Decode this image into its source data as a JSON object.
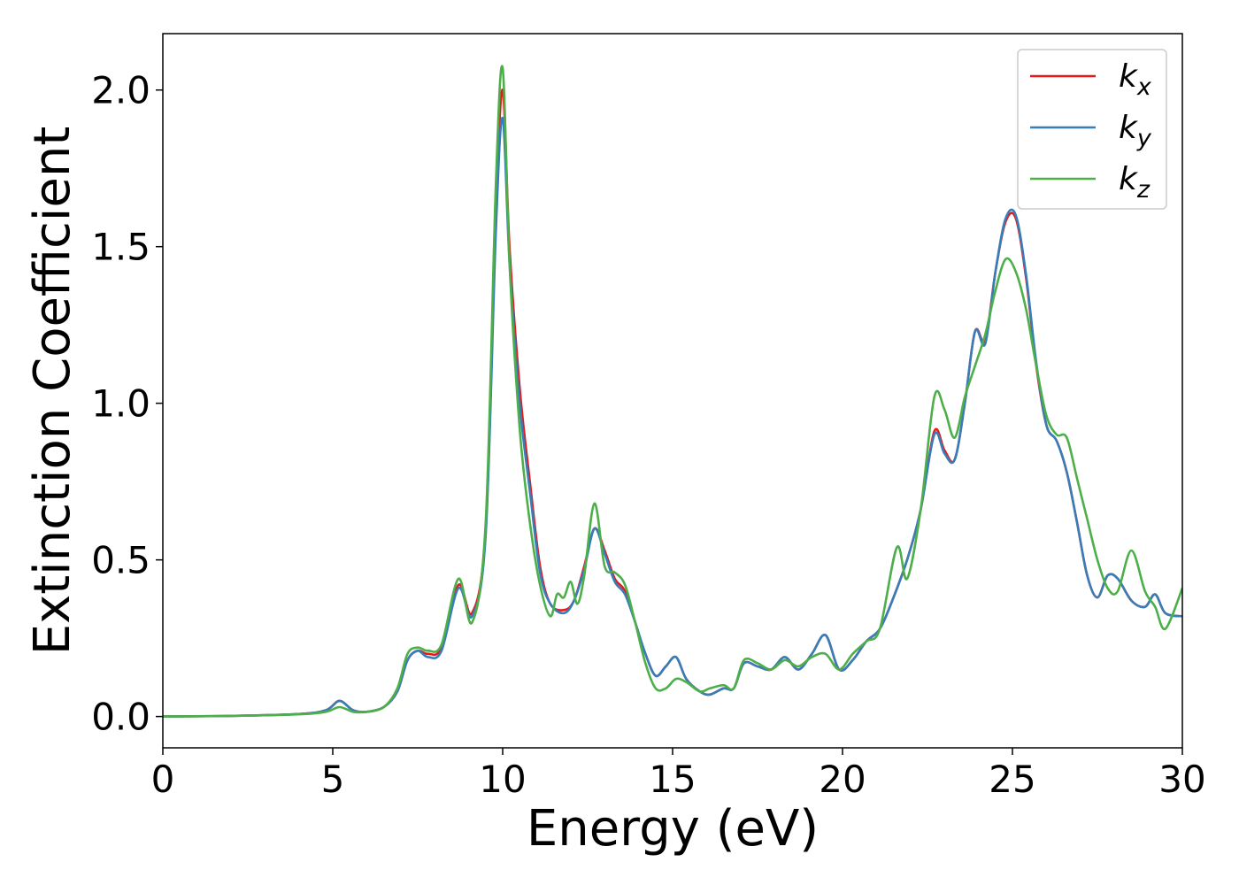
{
  "chart_data": {
    "type": "line",
    "title": "",
    "xlabel": "Energy (eV)",
    "ylabel": "Extinction Coefficient",
    "xlim": [
      0,
      30
    ],
    "ylim": [
      -0.1,
      2.18
    ],
    "xticks": [
      0,
      5,
      10,
      15,
      20,
      25,
      30
    ],
    "yticks": [
      0.0,
      0.5,
      1.0,
      1.5,
      2.0
    ],
    "xtick_labels": [
      "0",
      "5",
      "10",
      "15",
      "20",
      "25",
      "30"
    ],
    "ytick_labels": [
      "0.0",
      "0.5",
      "1.0",
      "1.5",
      "2.0"
    ],
    "grid": false,
    "legend_position": "top-right",
    "series": [
      {
        "name": "k_x",
        "legend_base": "k",
        "legend_sub": "x",
        "color": "#e41a1c",
        "x": [
          0,
          2,
          4,
          4.8,
          5.2,
          5.6,
          6,
          6.5,
          6.9,
          7.2,
          7.5,
          7.8,
          8.2,
          8.7,
          9.1,
          9.5,
          9.8,
          10,
          10.2,
          10.5,
          10.8,
          11.1,
          11.4,
          11.8,
          12.1,
          12.4,
          12.7,
          13,
          13.3,
          13.6,
          13.9,
          14.2,
          14.5,
          14.8,
          15.1,
          15.4,
          15.8,
          16.1,
          16.5,
          16.8,
          17.1,
          17.5,
          17.9,
          18.3,
          18.7,
          19.1,
          19.5,
          19.9,
          20.3,
          20.7,
          21.1,
          21.5,
          21.9,
          22.3,
          22.7,
          23,
          23.3,
          23.6,
          23.9,
          24.2,
          24.5,
          24.8,
          25.1,
          25.4,
          25.7,
          26,
          26.3,
          26.6,
          26.9,
          27.2,
          27.5,
          27.8,
          28.1,
          28.5,
          28.9,
          29.2,
          29.5,
          30
        ],
        "y": [
          0,
          0.002,
          0.008,
          0.02,
          0.05,
          0.02,
          0.015,
          0.03,
          0.08,
          0.18,
          0.21,
          0.2,
          0.22,
          0.42,
          0.33,
          0.6,
          1.6,
          2.0,
          1.5,
          1.05,
          0.75,
          0.48,
          0.36,
          0.34,
          0.37,
          0.48,
          0.6,
          0.53,
          0.44,
          0.4,
          0.3,
          0.2,
          0.13,
          0.16,
          0.19,
          0.12,
          0.08,
          0.07,
          0.09,
          0.09,
          0.17,
          0.16,
          0.15,
          0.19,
          0.15,
          0.2,
          0.26,
          0.15,
          0.18,
          0.24,
          0.28,
          0.38,
          0.5,
          0.66,
          0.91,
          0.85,
          0.82,
          1.0,
          1.23,
          1.2,
          1.42,
          1.58,
          1.59,
          1.4,
          1.12,
          0.93,
          0.88,
          0.78,
          0.62,
          0.45,
          0.38,
          0.45,
          0.44,
          0.37,
          0.35,
          0.39,
          0.33,
          0.32
        ]
      },
      {
        "name": "k_y",
        "legend_base": "k",
        "legend_sub": "y",
        "color": "#377eb8",
        "x": [
          0,
          2,
          4,
          4.8,
          5.2,
          5.6,
          6,
          6.5,
          6.9,
          7.2,
          7.5,
          7.8,
          8.2,
          8.7,
          9.1,
          9.5,
          9.8,
          10,
          10.2,
          10.5,
          10.8,
          11.1,
          11.4,
          11.8,
          12.1,
          12.4,
          12.7,
          13,
          13.3,
          13.6,
          13.9,
          14.2,
          14.5,
          14.8,
          15.1,
          15.4,
          15.8,
          16.1,
          16.5,
          16.8,
          17.1,
          17.5,
          17.9,
          18.3,
          18.7,
          19.1,
          19.5,
          19.9,
          20.3,
          20.7,
          21.1,
          21.5,
          21.9,
          22.3,
          22.7,
          23,
          23.3,
          23.6,
          23.9,
          24.2,
          24.5,
          24.8,
          25.1,
          25.4,
          25.7,
          26,
          26.3,
          26.6,
          26.9,
          27.2,
          27.5,
          27.8,
          28.1,
          28.5,
          28.9,
          29.2,
          29.5,
          30
        ],
        "y": [
          0,
          0.002,
          0.008,
          0.02,
          0.05,
          0.02,
          0.015,
          0.03,
          0.08,
          0.18,
          0.21,
          0.19,
          0.21,
          0.41,
          0.32,
          0.58,
          1.55,
          1.91,
          1.45,
          1.0,
          0.72,
          0.46,
          0.36,
          0.33,
          0.37,
          0.47,
          0.6,
          0.52,
          0.43,
          0.39,
          0.3,
          0.2,
          0.13,
          0.16,
          0.19,
          0.12,
          0.08,
          0.07,
          0.09,
          0.09,
          0.17,
          0.16,
          0.15,
          0.19,
          0.15,
          0.2,
          0.26,
          0.15,
          0.18,
          0.24,
          0.28,
          0.38,
          0.5,
          0.66,
          0.9,
          0.84,
          0.82,
          1.0,
          1.23,
          1.19,
          1.42,
          1.59,
          1.6,
          1.41,
          1.13,
          0.93,
          0.88,
          0.78,
          0.62,
          0.45,
          0.38,
          0.45,
          0.44,
          0.37,
          0.35,
          0.39,
          0.33,
          0.32
        ]
      },
      {
        "name": "k_z",
        "legend_base": "k",
        "legend_sub": "z",
        "color": "#4daf4a",
        "x": [
          0,
          2,
          4,
          4.8,
          5.2,
          5.6,
          6,
          6.5,
          6.9,
          7.2,
          7.5,
          7.8,
          8.2,
          8.7,
          9.1,
          9.5,
          9.8,
          10,
          10.2,
          10.5,
          10.8,
          11.1,
          11.4,
          11.6,
          11.8,
          12,
          12.2,
          12.4,
          12.7,
          13,
          13.3,
          13.6,
          13.9,
          14.2,
          14.5,
          14.8,
          15.1,
          15.4,
          15.8,
          16.1,
          16.5,
          16.8,
          17.1,
          17.5,
          17.9,
          18.3,
          18.7,
          19.1,
          19.5,
          19.9,
          20.3,
          20.7,
          21.1,
          21.6,
          21.9,
          22.3,
          22.7,
          23,
          23.3,
          23.6,
          23.9,
          24.2,
          24.5,
          24.8,
          25.1,
          25.4,
          25.7,
          26,
          26.3,
          26.6,
          26.9,
          27.2,
          27.5,
          27.8,
          28.1,
          28.5,
          28.9,
          29.2,
          29.5,
          30
        ],
        "y": [
          0,
          0.002,
          0.007,
          0.015,
          0.03,
          0.015,
          0.015,
          0.03,
          0.09,
          0.2,
          0.22,
          0.21,
          0.23,
          0.44,
          0.3,
          0.62,
          1.7,
          2.07,
          1.45,
          0.92,
          0.62,
          0.42,
          0.32,
          0.39,
          0.38,
          0.43,
          0.36,
          0.45,
          0.68,
          0.48,
          0.46,
          0.42,
          0.3,
          0.17,
          0.09,
          0.09,
          0.12,
          0.11,
          0.08,
          0.09,
          0.1,
          0.09,
          0.18,
          0.17,
          0.15,
          0.18,
          0.16,
          0.19,
          0.2,
          0.15,
          0.2,
          0.24,
          0.28,
          0.54,
          0.44,
          0.66,
          1.02,
          0.98,
          0.89,
          1.02,
          1.12,
          1.22,
          1.36,
          1.46,
          1.42,
          1.3,
          1.12,
          0.96,
          0.9,
          0.89,
          0.76,
          0.63,
          0.5,
          0.41,
          0.4,
          0.53,
          0.4,
          0.35,
          0.28,
          0.41
        ]
      }
    ]
  }
}
